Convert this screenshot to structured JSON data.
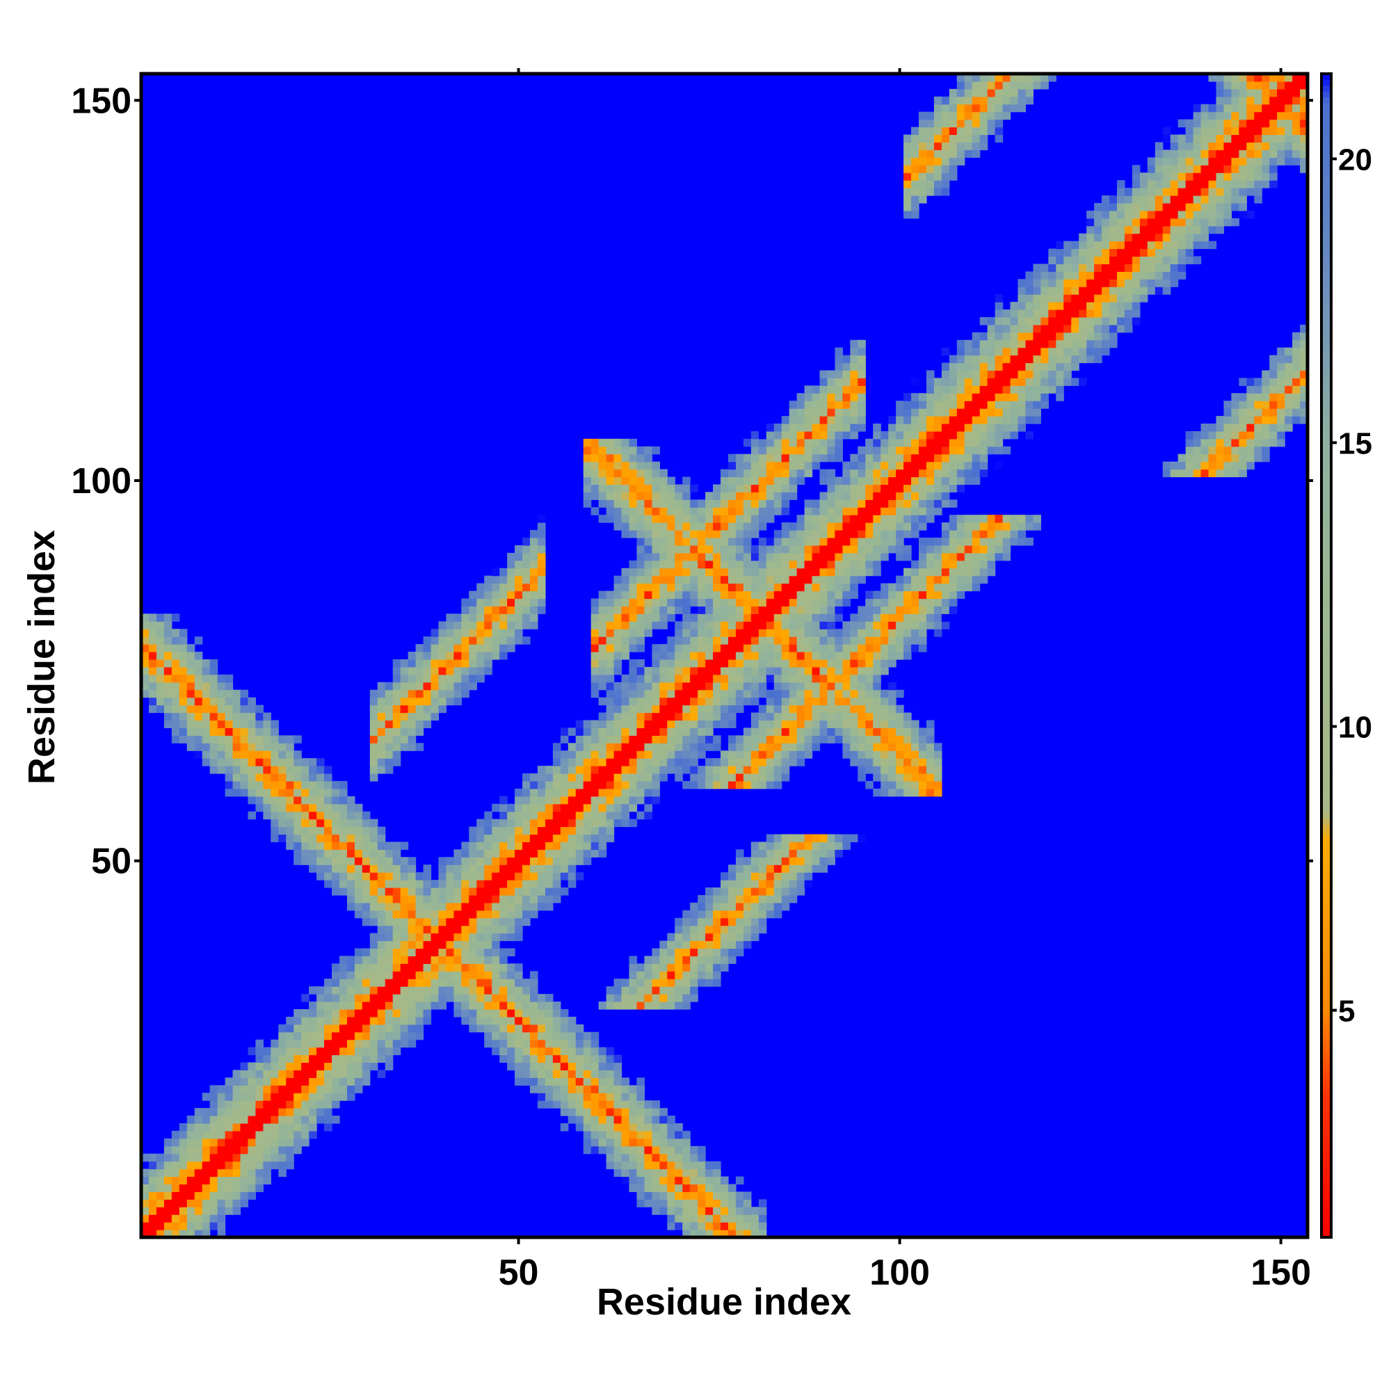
{
  "chart_data": {
    "type": "heatmap",
    "title": "",
    "xlabel": "Residue index",
    "ylabel": "Residue index",
    "n_residues": 153,
    "xlim": [
      1,
      153
    ],
    "ylim": [
      1,
      153
    ],
    "x_ticks": [
      50,
      100,
      150
    ],
    "y_ticks": [
      50,
      100,
      150
    ],
    "symmetric": true,
    "value_description": "pairwise distance",
    "colorbar": {
      "range": [
        1,
        21.5
      ],
      "ticks": [
        5,
        10,
        15,
        20
      ],
      "stops": [
        {
          "value": 1,
          "color": "#ff0000"
        },
        {
          "value": 3.5,
          "color": "#ff3300"
        },
        {
          "value": 5,
          "color": "#ff8800"
        },
        {
          "value": 8,
          "color": "#ffaa00"
        },
        {
          "value": 8.5,
          "color": "#a8b888"
        },
        {
          "value": 12,
          "color": "#9cb890"
        },
        {
          "value": 15,
          "color": "#8eb0a0"
        },
        {
          "value": 18,
          "color": "#6a8cc0"
        },
        {
          "value": 21,
          "color": "#4a70d0"
        },
        {
          "value": 21.5,
          "color": "#0000ff"
        }
      ]
    },
    "background_color": "#0000ff",
    "contact_features": [
      {
        "type": "diagonal",
        "from": 1,
        "to": 153
      },
      {
        "type": "antiparallel",
        "from": 1,
        "to": 78
      },
      {
        "type": "parallel",
        "from": 34,
        "to": 50,
        "offset": 35
      },
      {
        "type": "parallel",
        "from": 63,
        "to": 92,
        "offset": 18
      },
      {
        "type": "antiparallel",
        "from": 63,
        "to": 101
      },
      {
        "type": "parallel",
        "from": 104,
        "to": 124,
        "offset": 39
      },
      {
        "type": "antiparallel",
        "from": 145,
        "to": 155
      }
    ]
  }
}
